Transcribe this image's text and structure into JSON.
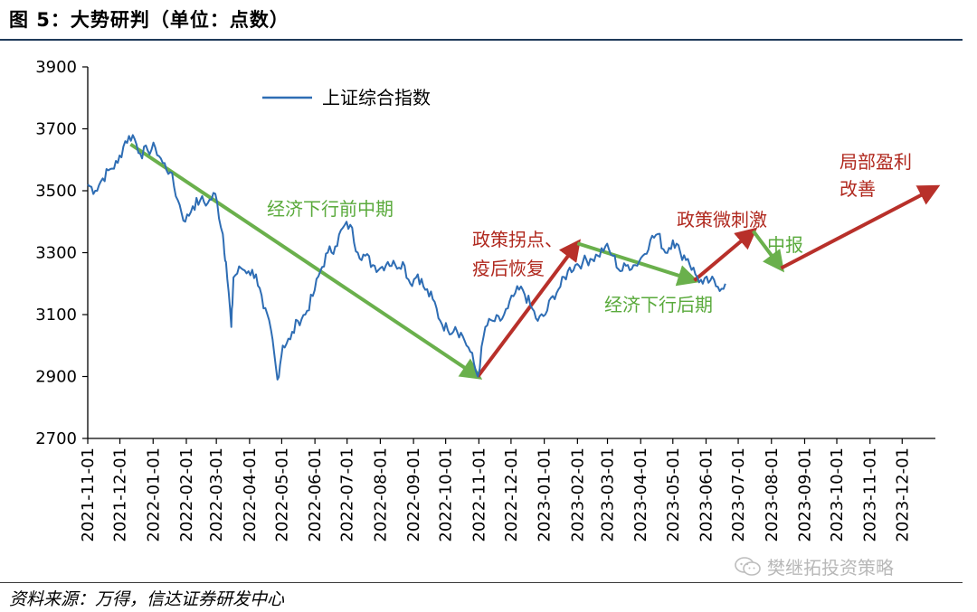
{
  "header": {
    "title": "图 5：大势研判（单位：点数）"
  },
  "footer": {
    "source": "资料来源：万得，信达证券研发中心",
    "watermark": "樊继拓投资策略"
  },
  "colors": {
    "series": "#2e6db4",
    "green": "#6ab04c",
    "red": "#b8302a",
    "greenText": "#5aaa3c",
    "redText": "#b0281e"
  },
  "chart_data": {
    "type": "line",
    "title": "",
    "xlabel": "",
    "ylabel": "",
    "ylim": [
      2700,
      3900
    ],
    "yticks": [
      2700,
      2900,
      3100,
      3300,
      3500,
      3700,
      3900
    ],
    "xlim": [
      "2021-11-01",
      "2024-01-01"
    ],
    "xticks": [
      "2021-11-01",
      "2021-12-01",
      "2022-01-01",
      "2022-02-01",
      "2022-03-01",
      "2022-04-01",
      "2022-05-01",
      "2022-06-01",
      "2022-07-01",
      "2022-08-01",
      "2022-09-01",
      "2022-10-01",
      "2022-11-01",
      "2022-12-01",
      "2023-01-01",
      "2023-02-01",
      "2023-03-01",
      "2023-04-01",
      "2023-05-01",
      "2023-06-01",
      "2023-07-01",
      "2023-08-01",
      "2023-09-01",
      "2023-10-01",
      "2023-11-01",
      "2023-12-01"
    ],
    "legend": {
      "placement": "top-left",
      "entries": [
        "上证综合指数"
      ]
    },
    "grid": false,
    "series": [
      {
        "name": "上证综合指数",
        "x": [
          "2021-11-01",
          "2021-11-08",
          "2021-11-15",
          "2021-11-22",
          "2021-11-29",
          "2021-12-06",
          "2021-12-13",
          "2021-12-20",
          "2021-12-27",
          "2022-01-03",
          "2022-01-10",
          "2022-01-17",
          "2022-01-24",
          "2022-01-31",
          "2022-02-07",
          "2022-02-14",
          "2022-02-21",
          "2022-02-28",
          "2022-03-07",
          "2022-03-10",
          "2022-03-15",
          "2022-03-17",
          "2022-03-24",
          "2022-03-31",
          "2022-04-07",
          "2022-04-14",
          "2022-04-21",
          "2022-04-27",
          "2022-05-02",
          "2022-05-09",
          "2022-05-16",
          "2022-05-23",
          "2022-05-30",
          "2022-06-06",
          "2022-06-13",
          "2022-06-20",
          "2022-06-27",
          "2022-07-04",
          "2022-07-11",
          "2022-07-18",
          "2022-07-25",
          "2022-08-01",
          "2022-08-08",
          "2022-08-15",
          "2022-08-22",
          "2022-08-29",
          "2022-09-05",
          "2022-09-12",
          "2022-09-19",
          "2022-09-26",
          "2022-10-03",
          "2022-10-10",
          "2022-10-17",
          "2022-10-24",
          "2022-10-31",
          "2022-11-07",
          "2022-11-14",
          "2022-11-21",
          "2022-11-28",
          "2022-12-05",
          "2022-12-12",
          "2022-12-19",
          "2022-12-26",
          "2023-01-02",
          "2023-01-09",
          "2023-01-16",
          "2023-01-23",
          "2023-01-30",
          "2023-02-06",
          "2023-02-13",
          "2023-02-20",
          "2023-02-27",
          "2023-03-06",
          "2023-03-13",
          "2023-03-20",
          "2023-03-27",
          "2023-04-03",
          "2023-04-10",
          "2023-04-17",
          "2023-04-24",
          "2023-05-01",
          "2023-05-08",
          "2023-05-15",
          "2023-05-22",
          "2023-05-29",
          "2023-06-05",
          "2023-06-12",
          "2023-06-19"
        ],
        "values": [
          3520,
          3500,
          3540,
          3570,
          3590,
          3660,
          3680,
          3620,
          3630,
          3640,
          3590,
          3560,
          3470,
          3400,
          3450,
          3470,
          3460,
          3490,
          3360,
          3270,
          3060,
          3220,
          3250,
          3240,
          3230,
          3120,
          3050,
          2890,
          3000,
          3020,
          3080,
          3100,
          3160,
          3240,
          3300,
          3320,
          3380,
          3390,
          3300,
          3290,
          3260,
          3250,
          3270,
          3260,
          3270,
          3200,
          3230,
          3180,
          3150,
          3080,
          3050,
          3060,
          3030,
          2980,
          2900,
          3060,
          3080,
          3080,
          3120,
          3170,
          3180,
          3130,
          3080,
          3100,
          3160,
          3190,
          3240,
          3260,
          3270,
          3280,
          3290,
          3320,
          3290,
          3240,
          3260,
          3260,
          3290,
          3340,
          3360,
          3300,
          3340,
          3300,
          3280,
          3230,
          3200,
          3210,
          3190,
          3200
        ]
      }
    ],
    "arrows": [
      {
        "color": "green",
        "from": [
          "2021-12-11",
          3650
        ],
        "to": [
          "2022-10-31",
          2900
        ]
      },
      {
        "color": "red",
        "from": [
          "2022-10-31",
          2900
        ],
        "to": [
          "2023-02-01",
          3330
        ]
      },
      {
        "color": "green",
        "from": [
          "2023-02-01",
          3330
        ],
        "to": [
          "2023-05-21",
          3210
        ]
      },
      {
        "color": "red",
        "from": [
          "2023-05-21",
          3210
        ],
        "to": [
          "2023-07-15",
          3370
        ]
      },
      {
        "color": "green",
        "from": [
          "2023-07-15",
          3370
        ],
        "to": [
          "2023-08-10",
          3250
        ]
      },
      {
        "color": "red",
        "from": [
          "2023-08-10",
          3250
        ],
        "to": [
          "2024-01-01",
          3510
        ]
      }
    ],
    "annotations": [
      {
        "text": "经济下行前中期",
        "color": "green"
      },
      {
        "text": "政策拐点、",
        "color": "red"
      },
      {
        "text": "疫后恢复",
        "color": "red"
      },
      {
        "text": "经济下行后期",
        "color": "green"
      },
      {
        "text": "政策微刺激",
        "color": "red"
      },
      {
        "text": "中报",
        "color": "green"
      },
      {
        "text": "局部盈利",
        "color": "red"
      },
      {
        "text": "改善",
        "color": "red"
      }
    ]
  }
}
